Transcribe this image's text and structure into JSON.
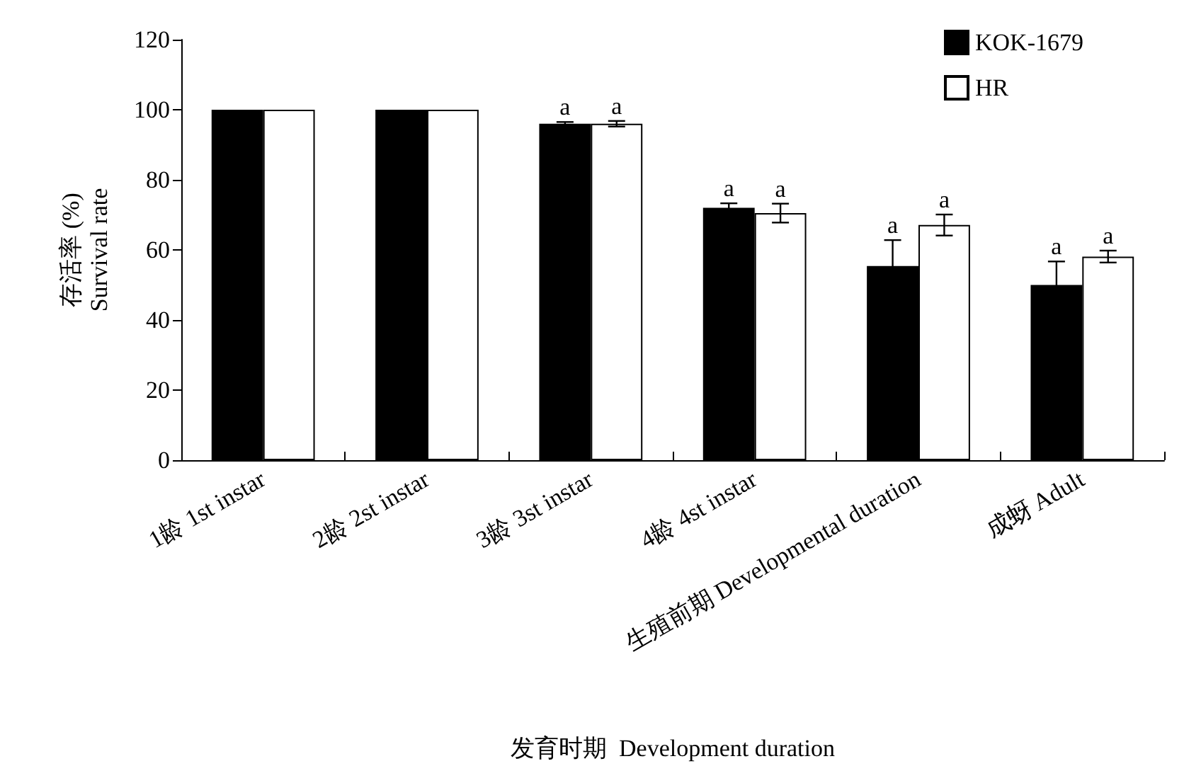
{
  "chart_data": {
    "type": "bar",
    "xlabel": "发育时期  Development duration",
    "ylabel": "存活率 (%)\nSurvival rate",
    "categories": [
      "1龄 1st instar",
      "2龄 2st instar",
      "3龄 3st instar",
      "4龄 4st instar",
      "生殖前期 Developmental duration",
      "成蚜 Adult"
    ],
    "series": [
      {
        "name": "KOK-1679",
        "color": "#000000",
        "values": [
          100,
          100,
          96,
          72,
          55.4,
          50
        ],
        "errors": [
          null,
          null,
          0.5,
          1.3,
          7.4,
          6.7
        ]
      },
      {
        "name": "HR",
        "color": "#ffffff",
        "values": [
          100,
          100,
          96,
          70.5,
          67.1,
          58.1
        ],
        "errors": [
          null,
          null,
          0.8,
          2.7,
          3,
          1.7
        ]
      }
    ],
    "annotations": [
      {
        "text": "a",
        "x": "3龄 3st instar",
        "y": 96
      },
      {
        "text": "a",
        "x": "3龄 3st instar",
        "y": 96
      },
      {
        "text": "a",
        "x": "4龄 4st instar",
        "y": 72
      },
      {
        "text": "a",
        "x": "4龄 4st instar",
        "y": 70.5
      },
      {
        "text": "a",
        "x": "生殖前期 Developmental duration",
        "y": 55.4
      },
      {
        "text": "a",
        "x": "生殖前期 Developmental duration",
        "y": 67.1
      },
      {
        "text": "a",
        "x": "成蚜 Adult",
        "y": 50
      },
      {
        "text": "a",
        "x": "成蚜 Adult",
        "y": 58.1
      }
    ],
    "ylim": [
      0,
      120
    ],
    "yticks": [
      0,
      20,
      40,
      60,
      80,
      100,
      120
    ],
    "grid": false,
    "legend": "top right"
  }
}
